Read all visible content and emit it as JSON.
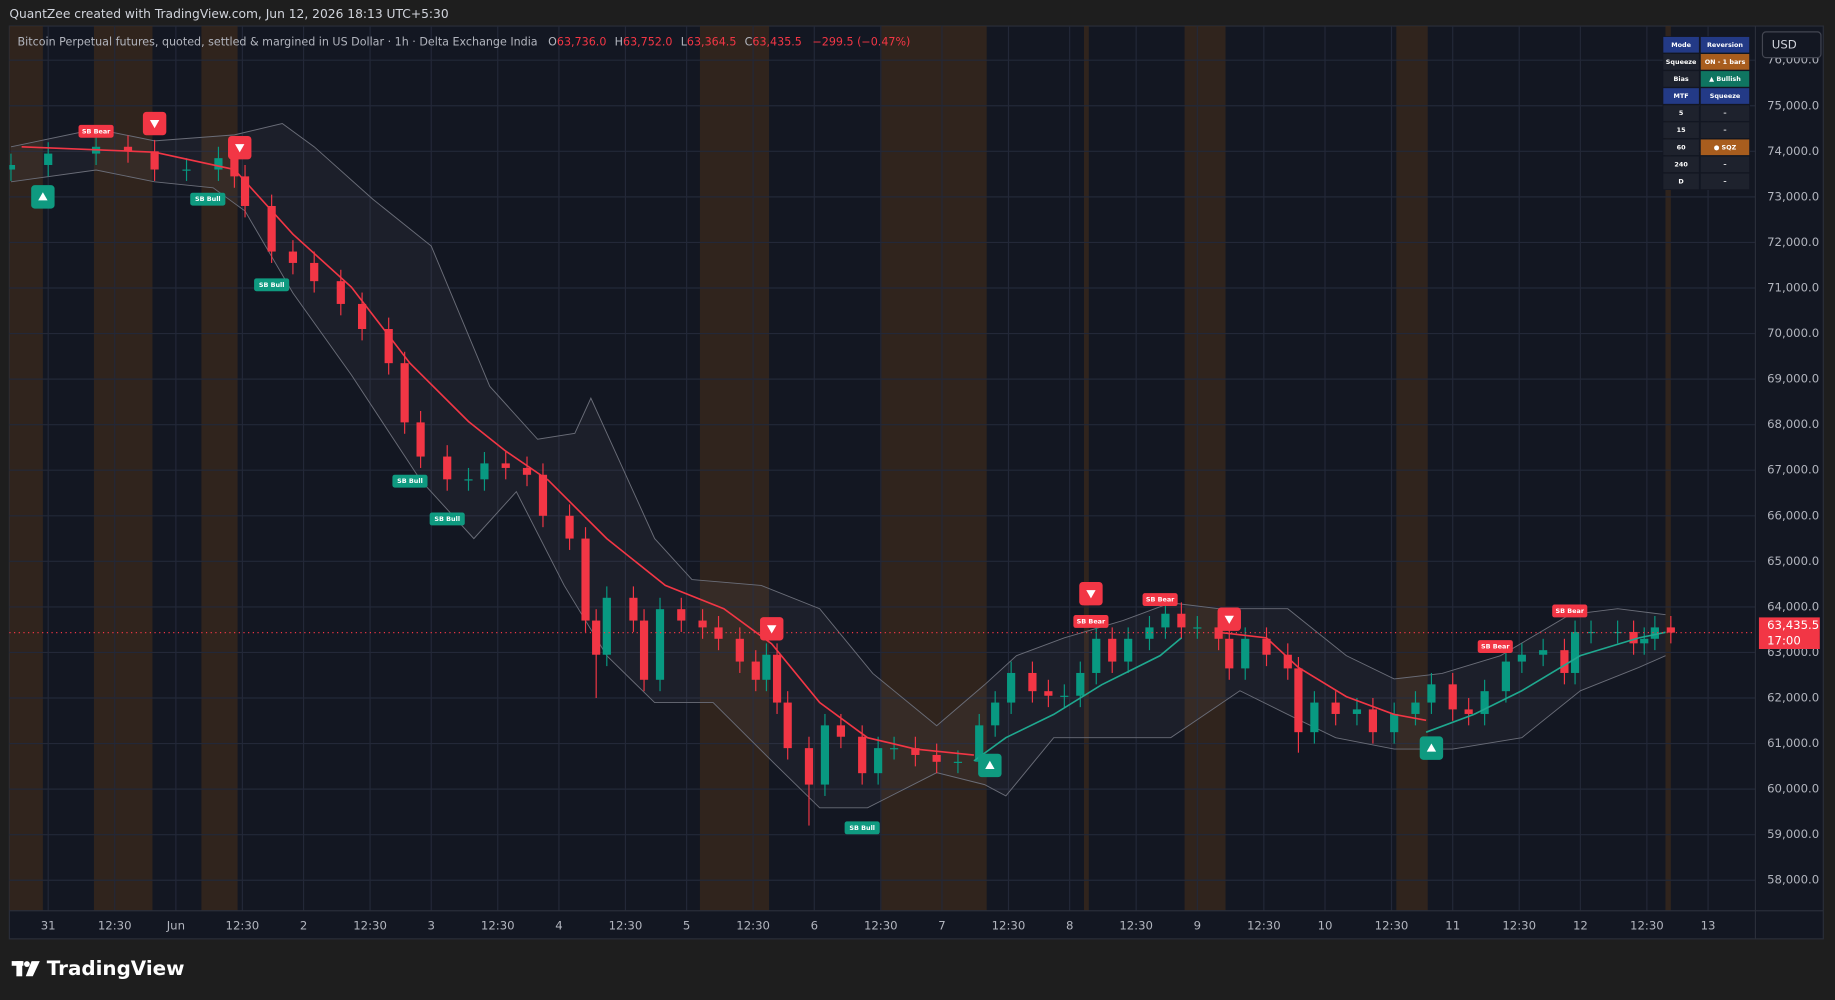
{
  "header": {
    "attribution": "QuantZee created with TradingView.com, Jun 12, 2026 18:13 UTC+5:30",
    "symbol": "Bitcoin Perpetual futures, quoted, settled & margined in US Dollar · 1h · Delta Exchange India",
    "ohlc": [
      {
        "label": "O",
        "value": "63,736.0"
      },
      {
        "label": "H",
        "value": "63,752.0"
      },
      {
        "label": "L",
        "value": "63,364.5"
      },
      {
        "label": "C",
        "value": "63,435.5"
      }
    ],
    "change": "−299.5 (−0.47%)"
  },
  "currency": "USD",
  "branding": "TradingView",
  "indicator_table": {
    "rows": [
      [
        "Mode",
        "Reversion"
      ],
      [
        "Squeeze",
        "ON - 1 bars"
      ],
      [
        "Bias",
        "▲ Bullish"
      ],
      [
        "MTF",
        "Squeeze"
      ],
      [
        "5",
        "–"
      ],
      [
        "15",
        "–"
      ],
      [
        "60",
        "● SQZ"
      ],
      [
        "240",
        "–"
      ],
      [
        "D",
        "–"
      ]
    ]
  },
  "chart_data": {
    "type": "candlestick",
    "up_color": "#089981",
    "down_color": "#f23645",
    "grid": true,
    "x": [
      -7,
      0,
      9,
      15,
      20,
      26,
      32,
      35,
      37,
      42,
      46,
      50,
      55,
      59,
      64,
      67,
      70,
      75,
      79,
      82,
      86,
      90,
      93,
      98,
      101,
      103,
      105,
      110,
      112,
      115,
      119,
      123,
      126,
      130,
      133,
      135,
      137,
      139,
      143,
      146,
      149,
      153,
      156,
      159,
      163,
      167,
      171,
      175,
      178,
      181,
      185,
      188,
      191,
      194,
      197,
      200,
      203,
      207,
      210,
      213,
      216,
      220,
      222,
      225,
      229,
      233,
      235,
      238,
      242,
      246,
      249,
      253,
      257,
      260,
      264,
      267,
      270,
      274,
      277,
      281,
      285,
      287,
      290,
      295,
      298,
      300,
      302,
      305
    ],
    "open": [
      73600,
      73700,
      73950,
      74100,
      74000,
      73600,
      73600,
      73850,
      73450,
      72800,
      71800,
      71550,
      71150,
      70650,
      70100,
      69350,
      68050,
      67300,
      66800,
      66800,
      67150,
      67050,
      66900,
      66000,
      65500,
      63700,
      62950,
      64200,
      63700,
      62400,
      63950,
      63700,
      63550,
      63300,
      62800,
      62400,
      62950,
      61900,
      60900,
      60100,
      61400,
      61150,
      60350,
      60900,
      60900,
      60750,
      60600,
      60600,
      61400,
      61900,
      62550,
      62150,
      62050,
      62050,
      62550,
      63300,
      62800,
      63300,
      63550,
      63850,
      63550,
      63550,
      63300,
      62650,
      63300,
      62950,
      62650,
      61250,
      61900,
      61650,
      61750,
      61250,
      61650,
      61900,
      62300,
      61750,
      61650,
      62150,
      62800,
      62950,
      63050,
      62550,
      63450,
      63450,
      63450,
      63200,
      63300,
      63550
    ],
    "high": [
      73950,
      74200,
      74350,
      74350,
      74250,
      73850,
      74100,
      74100,
      73700,
      73050,
      72050,
      71800,
      71400,
      70900,
      70350,
      69600,
      68300,
      67550,
      67050,
      67400,
      67400,
      67300,
      67150,
      66250,
      65750,
      63950,
      64450,
      64450,
      63950,
      64200,
      64200,
      63950,
      63800,
      63550,
      63050,
      63200,
      63200,
      62150,
      61150,
      61650,
      61650,
      61400,
      61150,
      61150,
      61150,
      61000,
      60850,
      61650,
      62150,
      62800,
      62800,
      62400,
      62300,
      62800,
      63550,
      63550,
      63550,
      63800,
      64100,
      64100,
      63800,
      63800,
      63550,
      63550,
      63550,
      63200,
      62900,
      62150,
      62150,
      62000,
      62000,
      61900,
      62150,
      62550,
      62550,
      62000,
      62400,
      63050,
      63200,
      63300,
      63300,
      63700,
      63700,
      63700,
      63700,
      63550,
      63800,
      63800
    ],
    "low": [
      73350,
      73450,
      73700,
      73750,
      73350,
      73350,
      73350,
      73200,
      72550,
      71550,
      71300,
      70900,
      70400,
      69850,
      69100,
      67800,
      67050,
      66550,
      66550,
      66550,
      66800,
      66650,
      65750,
      65250,
      63450,
      62000,
      62700,
      63450,
      62150,
      62150,
      63450,
      63300,
      63050,
      62550,
      62150,
      62150,
      61650,
      60650,
      59200,
      59850,
      60900,
      60100,
      60100,
      60650,
      60500,
      60350,
      60350,
      60350,
      61150,
      61650,
      61900,
      61800,
      61800,
      61800,
      62300,
      62550,
      62550,
      63050,
      63300,
      63300,
      63300,
      63050,
      62400,
      62400,
      62700,
      62400,
      60800,
      61000,
      61400,
      61400,
      61000,
      61000,
      61400,
      61650,
      61500,
      61400,
      61400,
      61900,
      62550,
      62700,
      62300,
      62300,
      63200,
      63200,
      62950,
      62950,
      63050,
      63200
    ],
    "close": [
      73700,
      73950,
      74100,
      74000,
      73600,
      73600,
      73850,
      73450,
      72800,
      71800,
      71550,
      71150,
      70650,
      70100,
      69350,
      68050,
      67300,
      66800,
      66800,
      67150,
      67050,
      66900,
      66000,
      65500,
      63700,
      62950,
      64200,
      63700,
      62400,
      63950,
      63700,
      63550,
      63300,
      62800,
      62400,
      62950,
      61900,
      60900,
      60100,
      61400,
      61150,
      60350,
      60900,
      60900,
      60750,
      60600,
      60600,
      61400,
      61900,
      62550,
      62150,
      62050,
      62050,
      62550,
      63300,
      62800,
      63300,
      63550,
      63850,
      63550,
      63550,
      63300,
      62650,
      63300,
      62950,
      62650,
      61250,
      61900,
      61650,
      61750,
      61250,
      61650,
      61900,
      62300,
      61750,
      61650,
      62150,
      62800,
      62950,
      63050,
      62550,
      63450,
      63450,
      63450,
      63200,
      63300,
      63550,
      63435.5
    ],
    "xlim": [
      -7.3,
      320.9
    ],
    "xticks": [
      {
        "value": 0,
        "label": "31"
      },
      {
        "value": 12.5,
        "label": "12:30"
      },
      {
        "value": 24,
        "label": "Jun"
      },
      {
        "value": 36.5,
        "label": "12:30"
      },
      {
        "value": 48,
        "label": "2"
      },
      {
        "value": 60.5,
        "label": "12:30"
      },
      {
        "value": 72,
        "label": "3"
      },
      {
        "value": 84.5,
        "label": "12:30"
      },
      {
        "value": 96,
        "label": "4"
      },
      {
        "value": 108.5,
        "label": "12:30"
      },
      {
        "value": 120,
        "label": "5"
      },
      {
        "value": 132.5,
        "label": "12:30"
      },
      {
        "value": 144,
        "label": "6"
      },
      {
        "value": 156.5,
        "label": "12:30"
      },
      {
        "value": 168,
        "label": "7"
      },
      {
        "value": 180.5,
        "label": "12:30"
      },
      {
        "value": 192,
        "label": "8"
      },
      {
        "value": 204.5,
        "label": "12:30"
      },
      {
        "value": 216,
        "label": "9"
      },
      {
        "value": 228.5,
        "label": "12:30"
      },
      {
        "value": 240,
        "label": "10"
      },
      {
        "value": 252.5,
        "label": "12:30"
      },
      {
        "value": 264,
        "label": "11"
      },
      {
        "value": 276.5,
        "label": "12:30"
      },
      {
        "value": 288,
        "label": "12"
      },
      {
        "value": 300.5,
        "label": "12:30"
      },
      {
        "value": 312,
        "label": "13"
      }
    ],
    "ylim": [
      57330,
      76750
    ],
    "yticks": [
      {
        "value": 58000,
        "label": "58,000.0"
      },
      {
        "value": 59000,
        "label": "59,000.0"
      },
      {
        "value": 60000,
        "label": "60,000.0"
      },
      {
        "value": 61000,
        "label": "61,000.0"
      },
      {
        "value": 62000,
        "label": "62,000.0"
      },
      {
        "value": 63000,
        "label": "63,000.0"
      },
      {
        "value": 64000,
        "label": "64,000.0"
      },
      {
        "value": 65000,
        "label": "65,000.0"
      },
      {
        "value": 66000,
        "label": "66,000.0"
      },
      {
        "value": 67000,
        "label": "67,000.0"
      },
      {
        "value": 68000,
        "label": "68,000.0"
      },
      {
        "value": 69000,
        "label": "69,000.0"
      },
      {
        "value": 70000,
        "label": "70,000.0"
      },
      {
        "value": 71000,
        "label": "71,000.0"
      },
      {
        "value": 72000,
        "label": "72,000.0"
      },
      {
        "value": 73000,
        "label": "73,000.0"
      },
      {
        "value": 74000,
        "label": "74,000.0"
      },
      {
        "value": 75000,
        "label": "75,000.0"
      },
      {
        "value": 76000,
        "label": "76,000.0"
      }
    ],
    "bands": {
      "color": "#6a6d78",
      "upper": {
        "x": [
          -7,
          9,
          20,
          35,
          44,
          50,
          61,
          72,
          83,
          92,
          99,
          102,
          108,
          114,
          121,
          134,
          145,
          155,
          167,
          176,
          182,
          191,
          202,
          211,
          220,
          233,
          244,
          253,
          262,
          273,
          286,
          295,
          304
        ],
        "values": [
          74100,
          74490,
          74230,
          74360,
          74610,
          74100,
          72950,
          71920,
          68840,
          67680,
          67810,
          68580,
          67040,
          65500,
          64600,
          64470,
          63960,
          62540,
          61390,
          62290,
          62930,
          63320,
          63700,
          64090,
          63960,
          63960,
          62930,
          62420,
          62540,
          62930,
          63830,
          63960,
          63830
        ]
      },
      "lower": {
        "x": [
          -7,
          9,
          20,
          31,
          37,
          46,
          57,
          70,
          80,
          88,
          97,
          105,
          114,
          125,
          136,
          145,
          154,
          167,
          176,
          180,
          189,
          198,
          211,
          224,
          233,
          242,
          253,
          264,
          277,
          288,
          299,
          304
        ],
        "values": [
          73330,
          73590,
          73330,
          73200,
          72690,
          70890,
          69090,
          66780,
          65500,
          66530,
          64470,
          62930,
          61900,
          61900,
          60620,
          59590,
          59590,
          60360,
          60100,
          59850,
          61130,
          61130,
          61130,
          62160,
          61640,
          61130,
          60880,
          60880,
          61130,
          62160,
          62670,
          62930
        ]
      }
    },
    "trend": [
      {
        "color": "#f23645",
        "x": [
          -5,
          20,
          35,
          46,
          57,
          68,
          79,
          86,
          94,
          105,
          116,
          127,
          136,
          145,
          154,
          163,
          174
        ],
        "values": [
          74100,
          73980,
          73600,
          72180,
          71020,
          69350,
          68070,
          67420,
          66780,
          65500,
          64470,
          63960,
          63190,
          61900,
          61130,
          60880,
          60750
        ]
      },
      {
        "color": "#1fa88f",
        "x": [
          174,
          180,
          189,
          198,
          209,
          213
        ],
        "values": [
          60620,
          61130,
          61640,
          62290,
          62930,
          63320
        ]
      },
      {
        "color": "#f23645",
        "x": [
          220,
          229,
          235,
          244,
          253,
          259
        ],
        "values": [
          63440,
          63320,
          62670,
          62030,
          61640,
          61510
        ]
      },
      {
        "color": "#1fa88f",
        "x": [
          259,
          268,
          277,
          288,
          299,
          304
        ],
        "values": [
          61250,
          61640,
          62160,
          62930,
          63320,
          63440
        ]
      }
    ],
    "session_shading": {
      "color": "#3b2a1c",
      "ranges": [
        [
          -7.3,
          -1
        ],
        [
          8.6,
          19.6
        ],
        [
          28.8,
          35.6
        ],
        [
          122.5,
          135.5
        ],
        [
          156.6,
          176.4
        ],
        [
          194.7,
          195.6
        ],
        [
          213.6,
          221.3
        ],
        [
          253.4,
          259.3
        ],
        [
          304,
          305
        ]
      ]
    },
    "signals": [
      {
        "label": "SB Bear",
        "color": "#f23645",
        "x": 9,
        "y": 74440
      },
      {
        "label": "SB Bear",
        "color": "#f23645",
        "x": 196,
        "y": 63680
      },
      {
        "label": "SB Bear",
        "color": "#f23645",
        "x": 209,
        "y": 64160
      },
      {
        "label": "SB Bear",
        "color": "#f23645",
        "x": 272,
        "y": 63130
      },
      {
        "label": "SB Bear",
        "color": "#f23645",
        "x": 286,
        "y": 63910
      },
      {
        "label": "SB Bull",
        "color": "#0f9a80",
        "x": 30,
        "y": 72950
      },
      {
        "label": "SB Bull",
        "color": "#0f9a80",
        "x": 42,
        "y": 71070
      },
      {
        "label": "SB Bull",
        "color": "#0f9a80",
        "x": 68,
        "y": 66760
      },
      {
        "label": "SB Bull",
        "color": "#0f9a80",
        "x": 75,
        "y": 65930
      },
      {
        "label": "SB Bull",
        "color": "#0f9a80",
        "x": 153,
        "y": 59150
      }
    ],
    "arrows": [
      {
        "direction": "down",
        "color": "#f23645",
        "x": 20,
        "y": 74610
      },
      {
        "direction": "down",
        "color": "#f23645",
        "x": 36,
        "y": 74080
      },
      {
        "direction": "down",
        "color": "#f23645",
        "x": 136,
        "y": 63520
      },
      {
        "direction": "down",
        "color": "#f23645",
        "x": 196,
        "y": 64290
      },
      {
        "direction": "down",
        "color": "#f23645",
        "x": 222,
        "y": 63730
      },
      {
        "direction": "up",
        "color": "#0f9a80",
        "x": -1,
        "y": 73000
      },
      {
        "direction": "up",
        "color": "#0f9a80",
        "x": 177,
        "y": 60520
      },
      {
        "direction": "up",
        "color": "#0f9a80",
        "x": 260,
        "y": 60900
      }
    ],
    "last_price": {
      "value": 63435.5,
      "label": "63,435.5",
      "countdown": "17:00",
      "color": "#f23645"
    }
  }
}
